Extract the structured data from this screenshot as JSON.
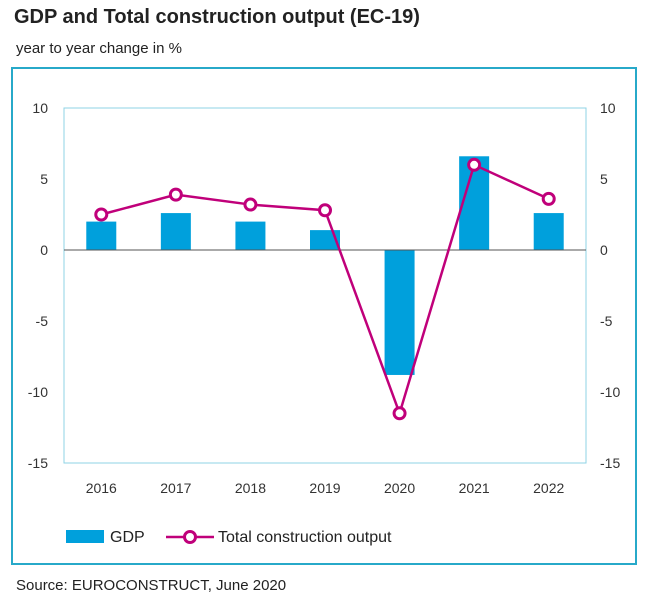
{
  "chart_data": {
    "type": "bar+line",
    "title": "GDP and Total construction output (EC-19)",
    "subtitle": "year to year change in %",
    "categories": [
      "2016",
      "2017",
      "2018",
      "2019",
      "2020",
      "2021",
      "2022"
    ],
    "series": [
      {
        "name": "GDP",
        "type": "bar",
        "values": [
          2.0,
          2.6,
          2.0,
          1.4,
          -8.8,
          6.6,
          2.6
        ],
        "color": "#00a0dc"
      },
      {
        "name": "Total construction output",
        "type": "line",
        "values": [
          2.5,
          3.9,
          3.2,
          2.8,
          -11.5,
          6.0,
          3.6
        ],
        "color": "#c0007a"
      }
    ],
    "ylim": [
      -15,
      10
    ],
    "yticks": [
      "10",
      "5",
      "0",
      "-5",
      "-10",
      "-15"
    ],
    "grid": false,
    "legend_position": "bottom-left",
    "source": "Source: EUROCONSTRUCT, June 2020"
  }
}
